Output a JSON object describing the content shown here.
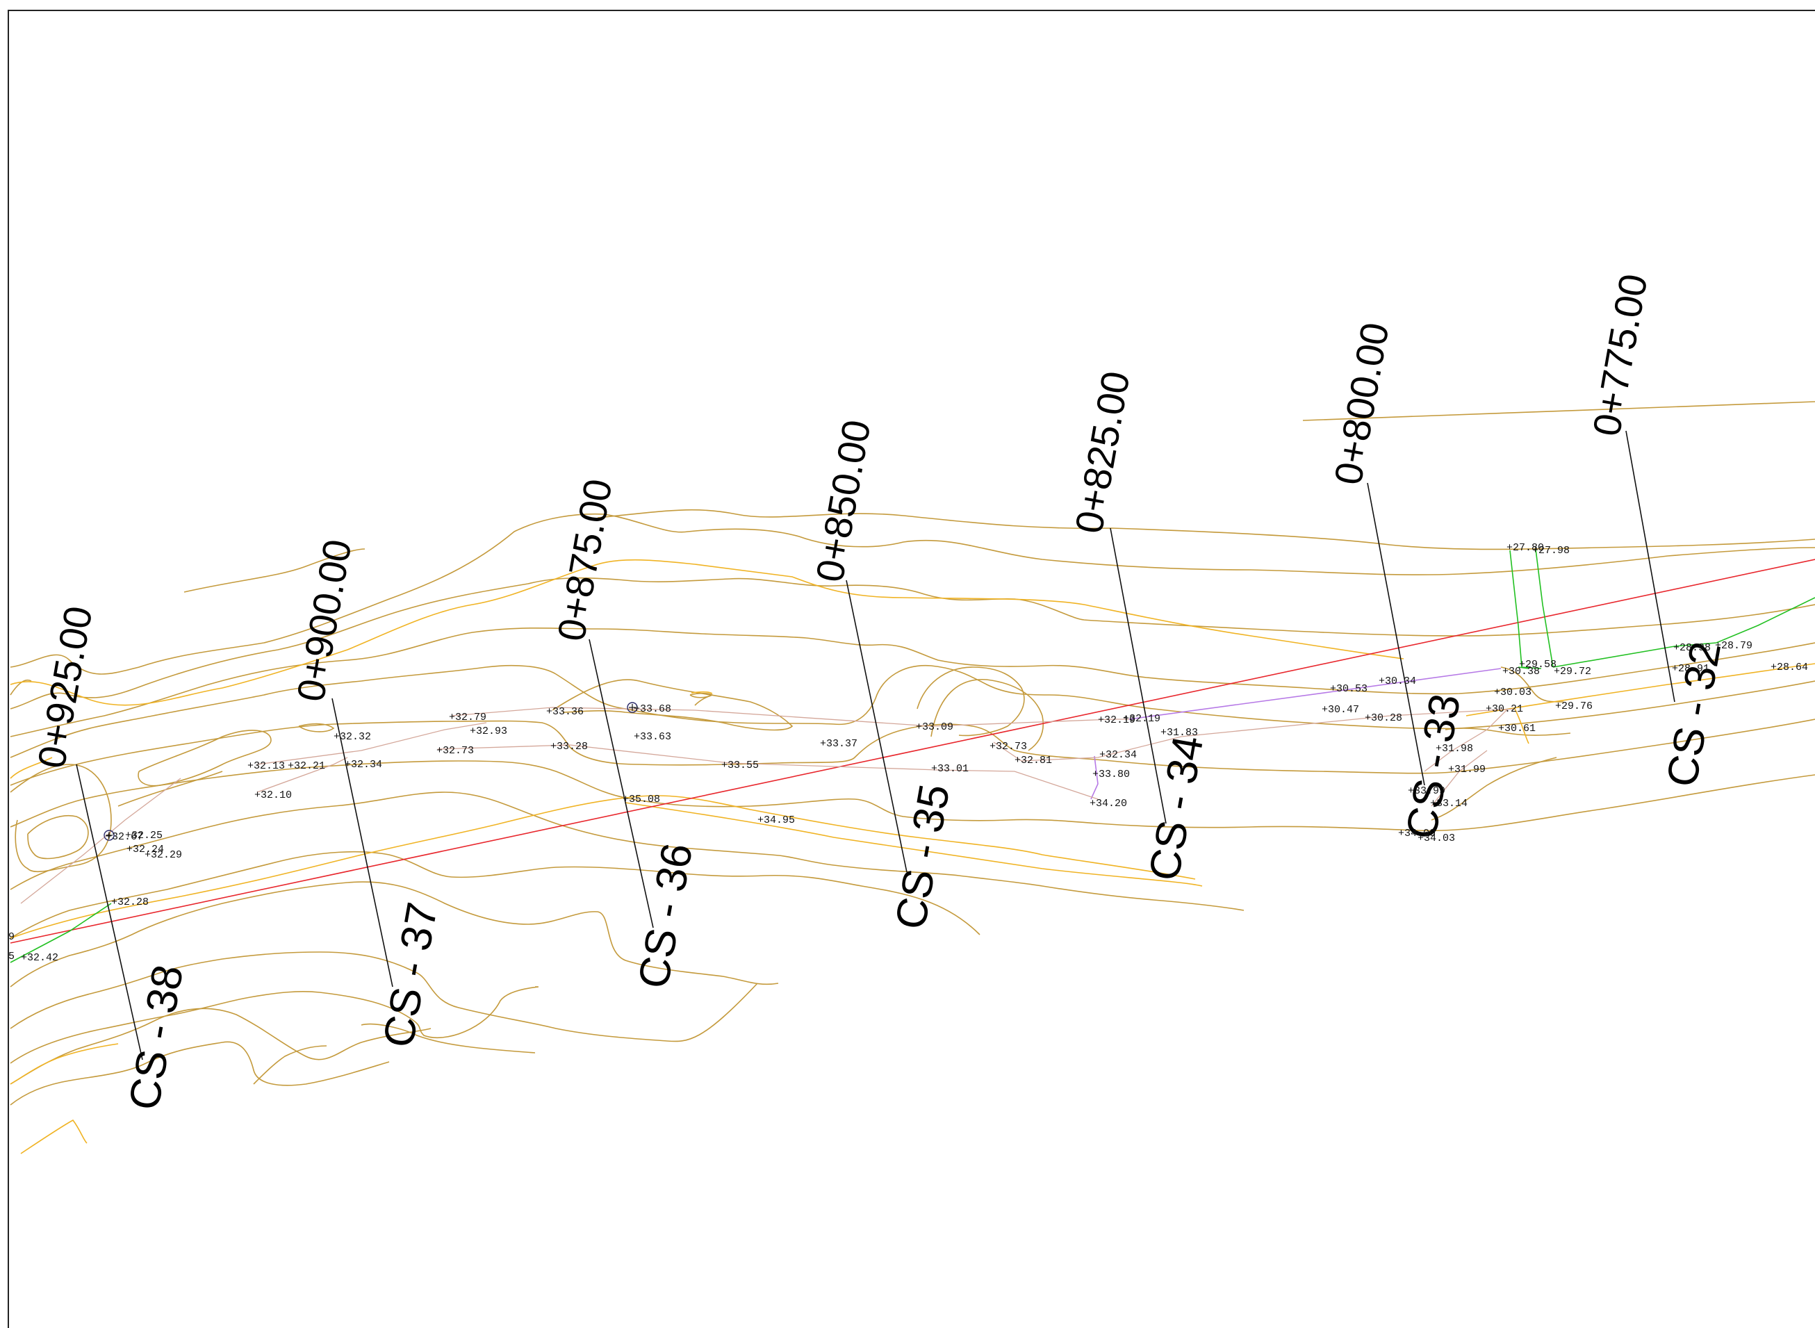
{
  "sections": [
    {
      "station": "0+775.00",
      "name": "CS - 32"
    },
    {
      "station": "0+800.00",
      "name": "CS - 33"
    },
    {
      "station": "0+825.00",
      "name": "CS - 34"
    },
    {
      "station": "0+850.00",
      "name": "CS - 35"
    },
    {
      "station": "0+875.00",
      "name": "CS - 36"
    },
    {
      "station": "0+900.00",
      "name": "CS - 37"
    },
    {
      "station": "0+925.00",
      "name": "CS - 38"
    }
  ],
  "spot_levels": [
    "+27.80",
    "+27.98",
    "+28.98",
    "+28.79",
    "+28.91",
    "+28.64",
    "+29.58",
    "+29.72",
    "+29.76",
    "+30.38",
    "+30.03",
    "+30.21",
    "+30.61",
    "+30.34",
    "+30.53",
    "+30.47",
    "+30.28",
    "+31.98",
    "+31.99",
    "+33.14",
    "+34.03",
    "+34.00",
    "+33.99",
    "+32.19",
    "+32.19",
    "+31.83",
    "+32.34",
    "+33.80",
    "+34.20",
    "+32.73",
    "+32.81",
    "+33.09",
    "+33.01",
    "+33.37",
    "+33.55",
    "+34.95",
    "+35.08",
    "+33.68",
    "+33.63",
    "+33.36",
    "+33.28",
    "+32.79",
    "+32.93",
    "+32.73",
    "+32.32",
    "+32.34",
    "+32.13",
    "+32.21",
    "+32.10",
    "+32.67",
    "+32.25",
    "+32.24",
    "+32.29",
    "+32.28",
    "+32.42",
    "5",
    "9"
  ],
  "colors": {
    "contour": "#c49a3c",
    "contour_highlight": "#f0b323",
    "centerline": "#e8262c",
    "boundary": "#22c022",
    "utility": "#b679e6",
    "section_line": "#111111"
  },
  "icons": {
    "benchmark": "benchmark-circle-icon",
    "spot": "spot-level-cross-icon"
  }
}
